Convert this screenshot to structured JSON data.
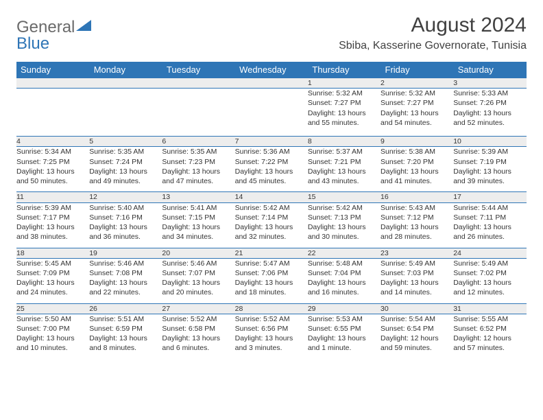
{
  "logo": {
    "general": "General",
    "blue": "Blue"
  },
  "title": "August 2024",
  "location": "Sbiba, Kasserine Governorate, Tunisia",
  "colors": {
    "header_bg": "#2e75b6",
    "header_fg": "#ffffff",
    "daynum_bg": "#ededed",
    "rule": "#2e75b6"
  },
  "days_of_week": [
    "Sunday",
    "Monday",
    "Tuesday",
    "Wednesday",
    "Thursday",
    "Friday",
    "Saturday"
  ],
  "weeks": [
    {
      "nums": [
        "",
        "",
        "",
        "",
        "1",
        "2",
        "3"
      ],
      "cells": [
        [],
        [],
        [],
        [],
        [
          "Sunrise: 5:32 AM",
          "Sunset: 7:27 PM",
          "Daylight: 13 hours",
          "and 55 minutes."
        ],
        [
          "Sunrise: 5:32 AM",
          "Sunset: 7:27 PM",
          "Daylight: 13 hours",
          "and 54 minutes."
        ],
        [
          "Sunrise: 5:33 AM",
          "Sunset: 7:26 PM",
          "Daylight: 13 hours",
          "and 52 minutes."
        ]
      ]
    },
    {
      "nums": [
        "4",
        "5",
        "6",
        "7",
        "8",
        "9",
        "10"
      ],
      "cells": [
        [
          "Sunrise: 5:34 AM",
          "Sunset: 7:25 PM",
          "Daylight: 13 hours",
          "and 50 minutes."
        ],
        [
          "Sunrise: 5:35 AM",
          "Sunset: 7:24 PM",
          "Daylight: 13 hours",
          "and 49 minutes."
        ],
        [
          "Sunrise: 5:35 AM",
          "Sunset: 7:23 PM",
          "Daylight: 13 hours",
          "and 47 minutes."
        ],
        [
          "Sunrise: 5:36 AM",
          "Sunset: 7:22 PM",
          "Daylight: 13 hours",
          "and 45 minutes."
        ],
        [
          "Sunrise: 5:37 AM",
          "Sunset: 7:21 PM",
          "Daylight: 13 hours",
          "and 43 minutes."
        ],
        [
          "Sunrise: 5:38 AM",
          "Sunset: 7:20 PM",
          "Daylight: 13 hours",
          "and 41 minutes."
        ],
        [
          "Sunrise: 5:39 AM",
          "Sunset: 7:19 PM",
          "Daylight: 13 hours",
          "and 39 minutes."
        ]
      ]
    },
    {
      "nums": [
        "11",
        "12",
        "13",
        "14",
        "15",
        "16",
        "17"
      ],
      "cells": [
        [
          "Sunrise: 5:39 AM",
          "Sunset: 7:17 PM",
          "Daylight: 13 hours",
          "and 38 minutes."
        ],
        [
          "Sunrise: 5:40 AM",
          "Sunset: 7:16 PM",
          "Daylight: 13 hours",
          "and 36 minutes."
        ],
        [
          "Sunrise: 5:41 AM",
          "Sunset: 7:15 PM",
          "Daylight: 13 hours",
          "and 34 minutes."
        ],
        [
          "Sunrise: 5:42 AM",
          "Sunset: 7:14 PM",
          "Daylight: 13 hours",
          "and 32 minutes."
        ],
        [
          "Sunrise: 5:42 AM",
          "Sunset: 7:13 PM",
          "Daylight: 13 hours",
          "and 30 minutes."
        ],
        [
          "Sunrise: 5:43 AM",
          "Sunset: 7:12 PM",
          "Daylight: 13 hours",
          "and 28 minutes."
        ],
        [
          "Sunrise: 5:44 AM",
          "Sunset: 7:11 PM",
          "Daylight: 13 hours",
          "and 26 minutes."
        ]
      ]
    },
    {
      "nums": [
        "18",
        "19",
        "20",
        "21",
        "22",
        "23",
        "24"
      ],
      "cells": [
        [
          "Sunrise: 5:45 AM",
          "Sunset: 7:09 PM",
          "Daylight: 13 hours",
          "and 24 minutes."
        ],
        [
          "Sunrise: 5:46 AM",
          "Sunset: 7:08 PM",
          "Daylight: 13 hours",
          "and 22 minutes."
        ],
        [
          "Sunrise: 5:46 AM",
          "Sunset: 7:07 PM",
          "Daylight: 13 hours",
          "and 20 minutes."
        ],
        [
          "Sunrise: 5:47 AM",
          "Sunset: 7:06 PM",
          "Daylight: 13 hours",
          "and 18 minutes."
        ],
        [
          "Sunrise: 5:48 AM",
          "Sunset: 7:04 PM",
          "Daylight: 13 hours",
          "and 16 minutes."
        ],
        [
          "Sunrise: 5:49 AM",
          "Sunset: 7:03 PM",
          "Daylight: 13 hours",
          "and 14 minutes."
        ],
        [
          "Sunrise: 5:49 AM",
          "Sunset: 7:02 PM",
          "Daylight: 13 hours",
          "and 12 minutes."
        ]
      ]
    },
    {
      "nums": [
        "25",
        "26",
        "27",
        "28",
        "29",
        "30",
        "31"
      ],
      "cells": [
        [
          "Sunrise: 5:50 AM",
          "Sunset: 7:00 PM",
          "Daylight: 13 hours",
          "and 10 minutes."
        ],
        [
          "Sunrise: 5:51 AM",
          "Sunset: 6:59 PM",
          "Daylight: 13 hours",
          "and 8 minutes."
        ],
        [
          "Sunrise: 5:52 AM",
          "Sunset: 6:58 PM",
          "Daylight: 13 hours",
          "and 6 minutes."
        ],
        [
          "Sunrise: 5:52 AM",
          "Sunset: 6:56 PM",
          "Daylight: 13 hours",
          "and 3 minutes."
        ],
        [
          "Sunrise: 5:53 AM",
          "Sunset: 6:55 PM",
          "Daylight: 13 hours",
          "and 1 minute."
        ],
        [
          "Sunrise: 5:54 AM",
          "Sunset: 6:54 PM",
          "Daylight: 12 hours",
          "and 59 minutes."
        ],
        [
          "Sunrise: 5:55 AM",
          "Sunset: 6:52 PM",
          "Daylight: 12 hours",
          "and 57 minutes."
        ]
      ]
    }
  ]
}
